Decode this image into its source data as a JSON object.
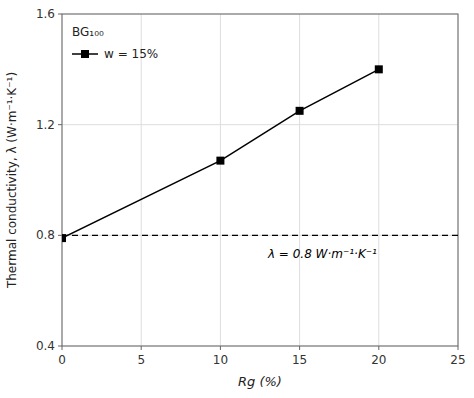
{
  "chart_data": {
    "type": "line",
    "x": [
      0,
      10,
      15,
      20
    ],
    "series": [
      {
        "name": "w = 15%",
        "color": "#000000",
        "marker": "square",
        "line_style": "solid",
        "values": [
          0.79,
          1.07,
          1.25,
          1.4
        ]
      }
    ],
    "xlim": [
      0,
      25
    ],
    "ylim": [
      0.4,
      1.6
    ],
    "xticks": [
      0,
      5,
      10,
      15,
      20,
      25
    ],
    "yticks": [
      0.4,
      0.8,
      1.2,
      1.6
    ],
    "xlabel": "Rg (%)",
    "ylabel": "Thermal conductivity, λ (W·m⁻¹·K⁻¹)",
    "hlines": [
      {
        "value": 0.8,
        "line_style": "dashed",
        "color": "#000000"
      }
    ],
    "annotations": [
      {
        "text": "λ = 0.8 W·m⁻¹·K⁻¹",
        "x": 13.0,
        "y": 0.76,
        "color": "#000000"
      }
    ],
    "legend_title": "BG₁₀₀",
    "legend": "upper left",
    "grid": true
  }
}
